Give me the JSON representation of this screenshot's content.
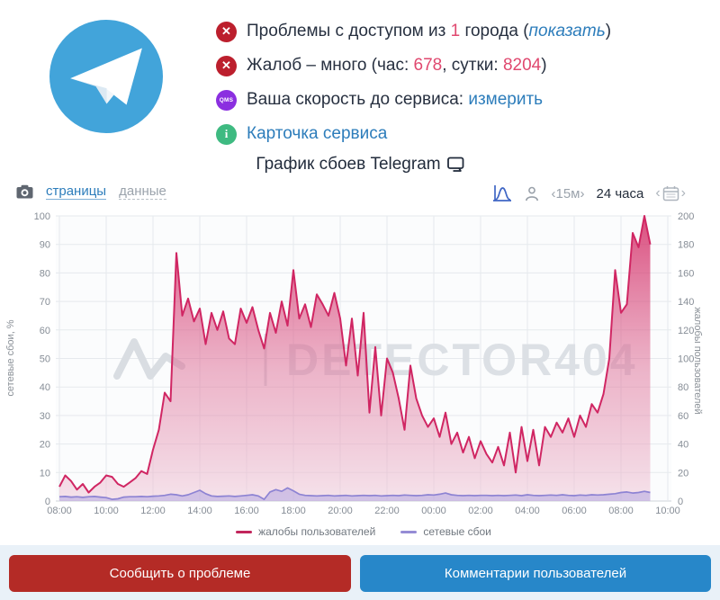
{
  "service": {
    "name": "Telegram"
  },
  "status": {
    "badge_error": "✕",
    "badge_qms": "QMS",
    "badge_info": "i",
    "line1": {
      "before": "Проблемы с доступом из ",
      "count": "1",
      "mid": " города (",
      "link": "показать",
      "after": ")"
    },
    "line2": {
      "before": "Жалоб – много (час: ",
      "hour": "678",
      "mid": ", сутки: ",
      "day": "8204",
      "after": ")"
    },
    "line3": {
      "before": "Ваша скорость до сервиса: ",
      "link": "измерить"
    },
    "line4": {
      "link": "Карточка сервиса"
    }
  },
  "title": {
    "text": "График сбоев Telegram"
  },
  "toolbar": {
    "tab_pages": "страницы",
    "tab_data": "данные",
    "interval": "‹15м›",
    "range": "24 часа",
    "cal_prev": "‹",
    "cal_next": "›"
  },
  "chart_data": {
    "type": "area",
    "title": "График сбоев Telegram",
    "watermark": "DETECTOR404",
    "x_axis": {
      "labels": [
        "08:00",
        "10:00",
        "12:00",
        "14:00",
        "16:00",
        "18:00",
        "20:00",
        "22:00",
        "00:00",
        "02:00",
        "04:00",
        "06:00",
        "08:00",
        "10:00"
      ],
      "hours_per_label": 2
    },
    "y_left": {
      "label": "сетевые сбои, %",
      "min": 0,
      "max": 100,
      "ticks": [
        0,
        10,
        20,
        30,
        40,
        50,
        60,
        70,
        80,
        90,
        100
      ]
    },
    "y_right": {
      "label": "жалобы пользователей",
      "min": 0,
      "max": 200,
      "ticks": [
        0,
        20,
        40,
        60,
        80,
        100,
        120,
        140,
        160,
        180,
        200
      ]
    },
    "grid": true,
    "series": [
      {
        "name": "жалобы пользователей",
        "axis": "right",
        "color": "#d02663",
        "fill_top": "rgba(210,35,95,0.80)",
        "fill_mid": "rgba(222,110,150,0.50)",
        "fill_bottom": "rgba(240,205,220,0.55)",
        "interval_min": 15,
        "start": "08:00",
        "values": [
          10,
          18,
          14,
          8,
          12,
          6,
          10,
          13,
          18,
          17,
          12,
          10,
          13,
          16,
          21,
          19,
          36,
          50,
          76,
          70,
          174,
          130,
          142,
          126,
          135,
          110,
          132,
          120,
          133,
          114,
          110,
          135,
          125,
          136,
          120,
          107,
          132,
          118,
          140,
          123,
          162,
          128,
          138,
          122,
          145,
          138,
          130,
          146,
          128,
          95,
          128,
          88,
          132,
          62,
          108,
          60,
          100,
          90,
          72,
          50,
          95,
          72,
          60,
          52,
          58,
          45,
          62,
          40,
          48,
          34,
          45,
          30,
          42,
          33,
          27,
          38,
          25,
          48,
          20,
          52,
          28,
          50,
          25,
          52,
          45,
          55,
          48,
          58,
          45,
          60,
          52,
          68,
          62,
          75,
          100,
          162,
          132,
          138,
          188,
          178,
          200,
          180
        ]
      },
      {
        "name": "сетевые сбои",
        "axis": "left",
        "color": "#8d83d3",
        "fill": "rgba(166,156,224,0.45)",
        "interval_min": 15,
        "start": "08:00",
        "values": [
          1.5,
          1.6,
          1.4,
          1.5,
          1.3,
          1.5,
          1.6,
          1.4,
          1.2,
          0.6,
          0.8,
          1.4,
          1.5,
          1.5,
          1.6,
          1.5,
          1.7,
          1.8,
          2.0,
          2.4,
          2.2,
          1.8,
          2.2,
          3.0,
          3.8,
          2.6,
          1.8,
          1.6,
          1.7,
          1.8,
          1.6,
          1.8,
          2.0,
          2.2,
          1.8,
          0.6,
          3.2,
          4.0,
          3.4,
          4.6,
          3.6,
          2.4,
          2.0,
          1.9,
          1.8,
          1.9,
          2.0,
          1.8,
          1.9,
          2.0,
          1.8,
          1.9,
          2.0,
          1.9,
          2.0,
          1.8,
          1.9,
          2.0,
          1.9,
          2.1,
          2.0,
          1.9,
          2.0,
          2.2,
          2.1,
          2.4,
          2.8,
          2.2,
          2.0,
          1.9,
          2.0,
          1.9,
          2.0,
          2.0,
          1.9,
          2.0,
          1.9,
          2.0,
          2.1,
          1.9,
          2.2,
          2.0,
          1.9,
          2.0,
          2.1,
          2.0,
          2.2,
          2.0,
          1.9,
          2.1,
          2.0,
          2.2,
          2.1,
          2.2,
          2.4,
          2.6,
          3.0,
          3.2,
          2.8,
          3.0,
          3.4,
          3.0
        ]
      }
    ],
    "legend": [
      {
        "label": "жалобы пользователей",
        "color": "#c2255c"
      },
      {
        "label": "сетевые сбои",
        "color": "#958cd5"
      }
    ]
  },
  "footer": {
    "report": "Сообщить о проблеме",
    "comments": "Комментарии пользователей"
  }
}
